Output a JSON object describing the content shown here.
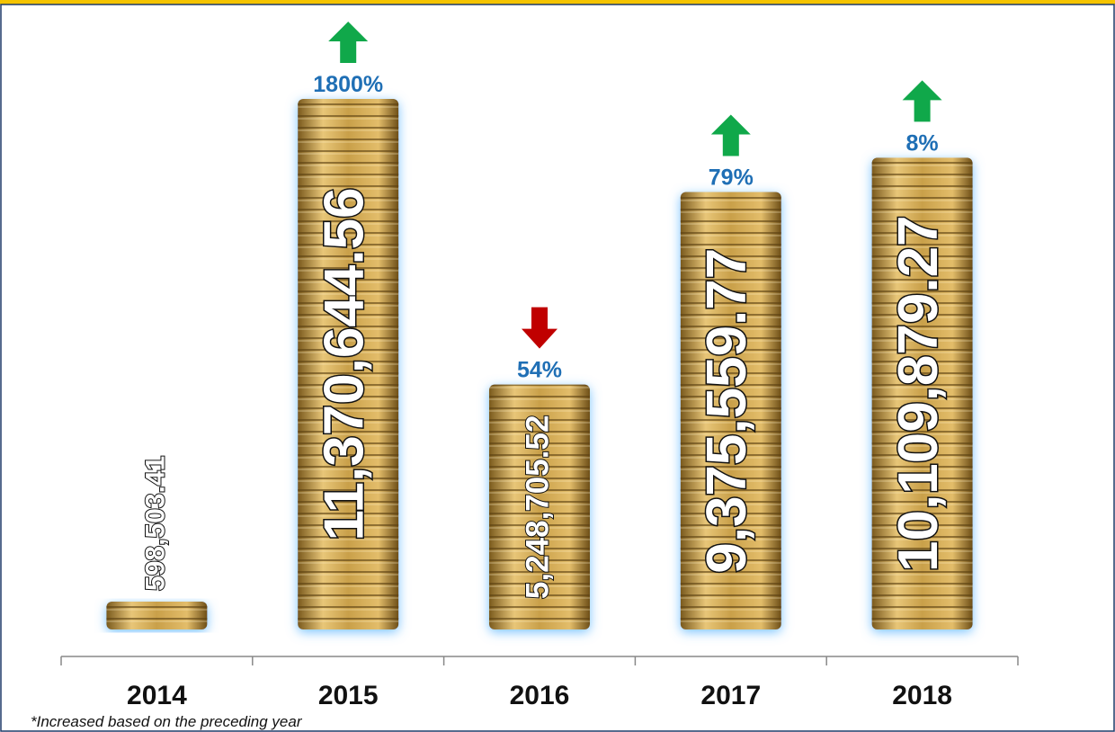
{
  "chart_data": {
    "type": "bar",
    "categories": [
      "2014",
      "2015",
      "2016",
      "2017",
      "2018"
    ],
    "values": [
      598503.41,
      11370644.56,
      5248705.52,
      9375559.77,
      10109879.27
    ],
    "value_labels": [
      "598,503.41",
      "11,370,644.56",
      "5,248,705.52",
      "9,375,559.77",
      "10,109,879.27"
    ],
    "changes": [
      null,
      1800,
      54,
      79,
      8
    ],
    "change_labels": [
      null,
      "1800%",
      "54%",
      "79%",
      "8%"
    ],
    "change_directions": [
      null,
      "up",
      "down",
      "up",
      "up"
    ],
    "color": "#c9a04a",
    "footnote": "*Increased based on the preceding year"
  }
}
